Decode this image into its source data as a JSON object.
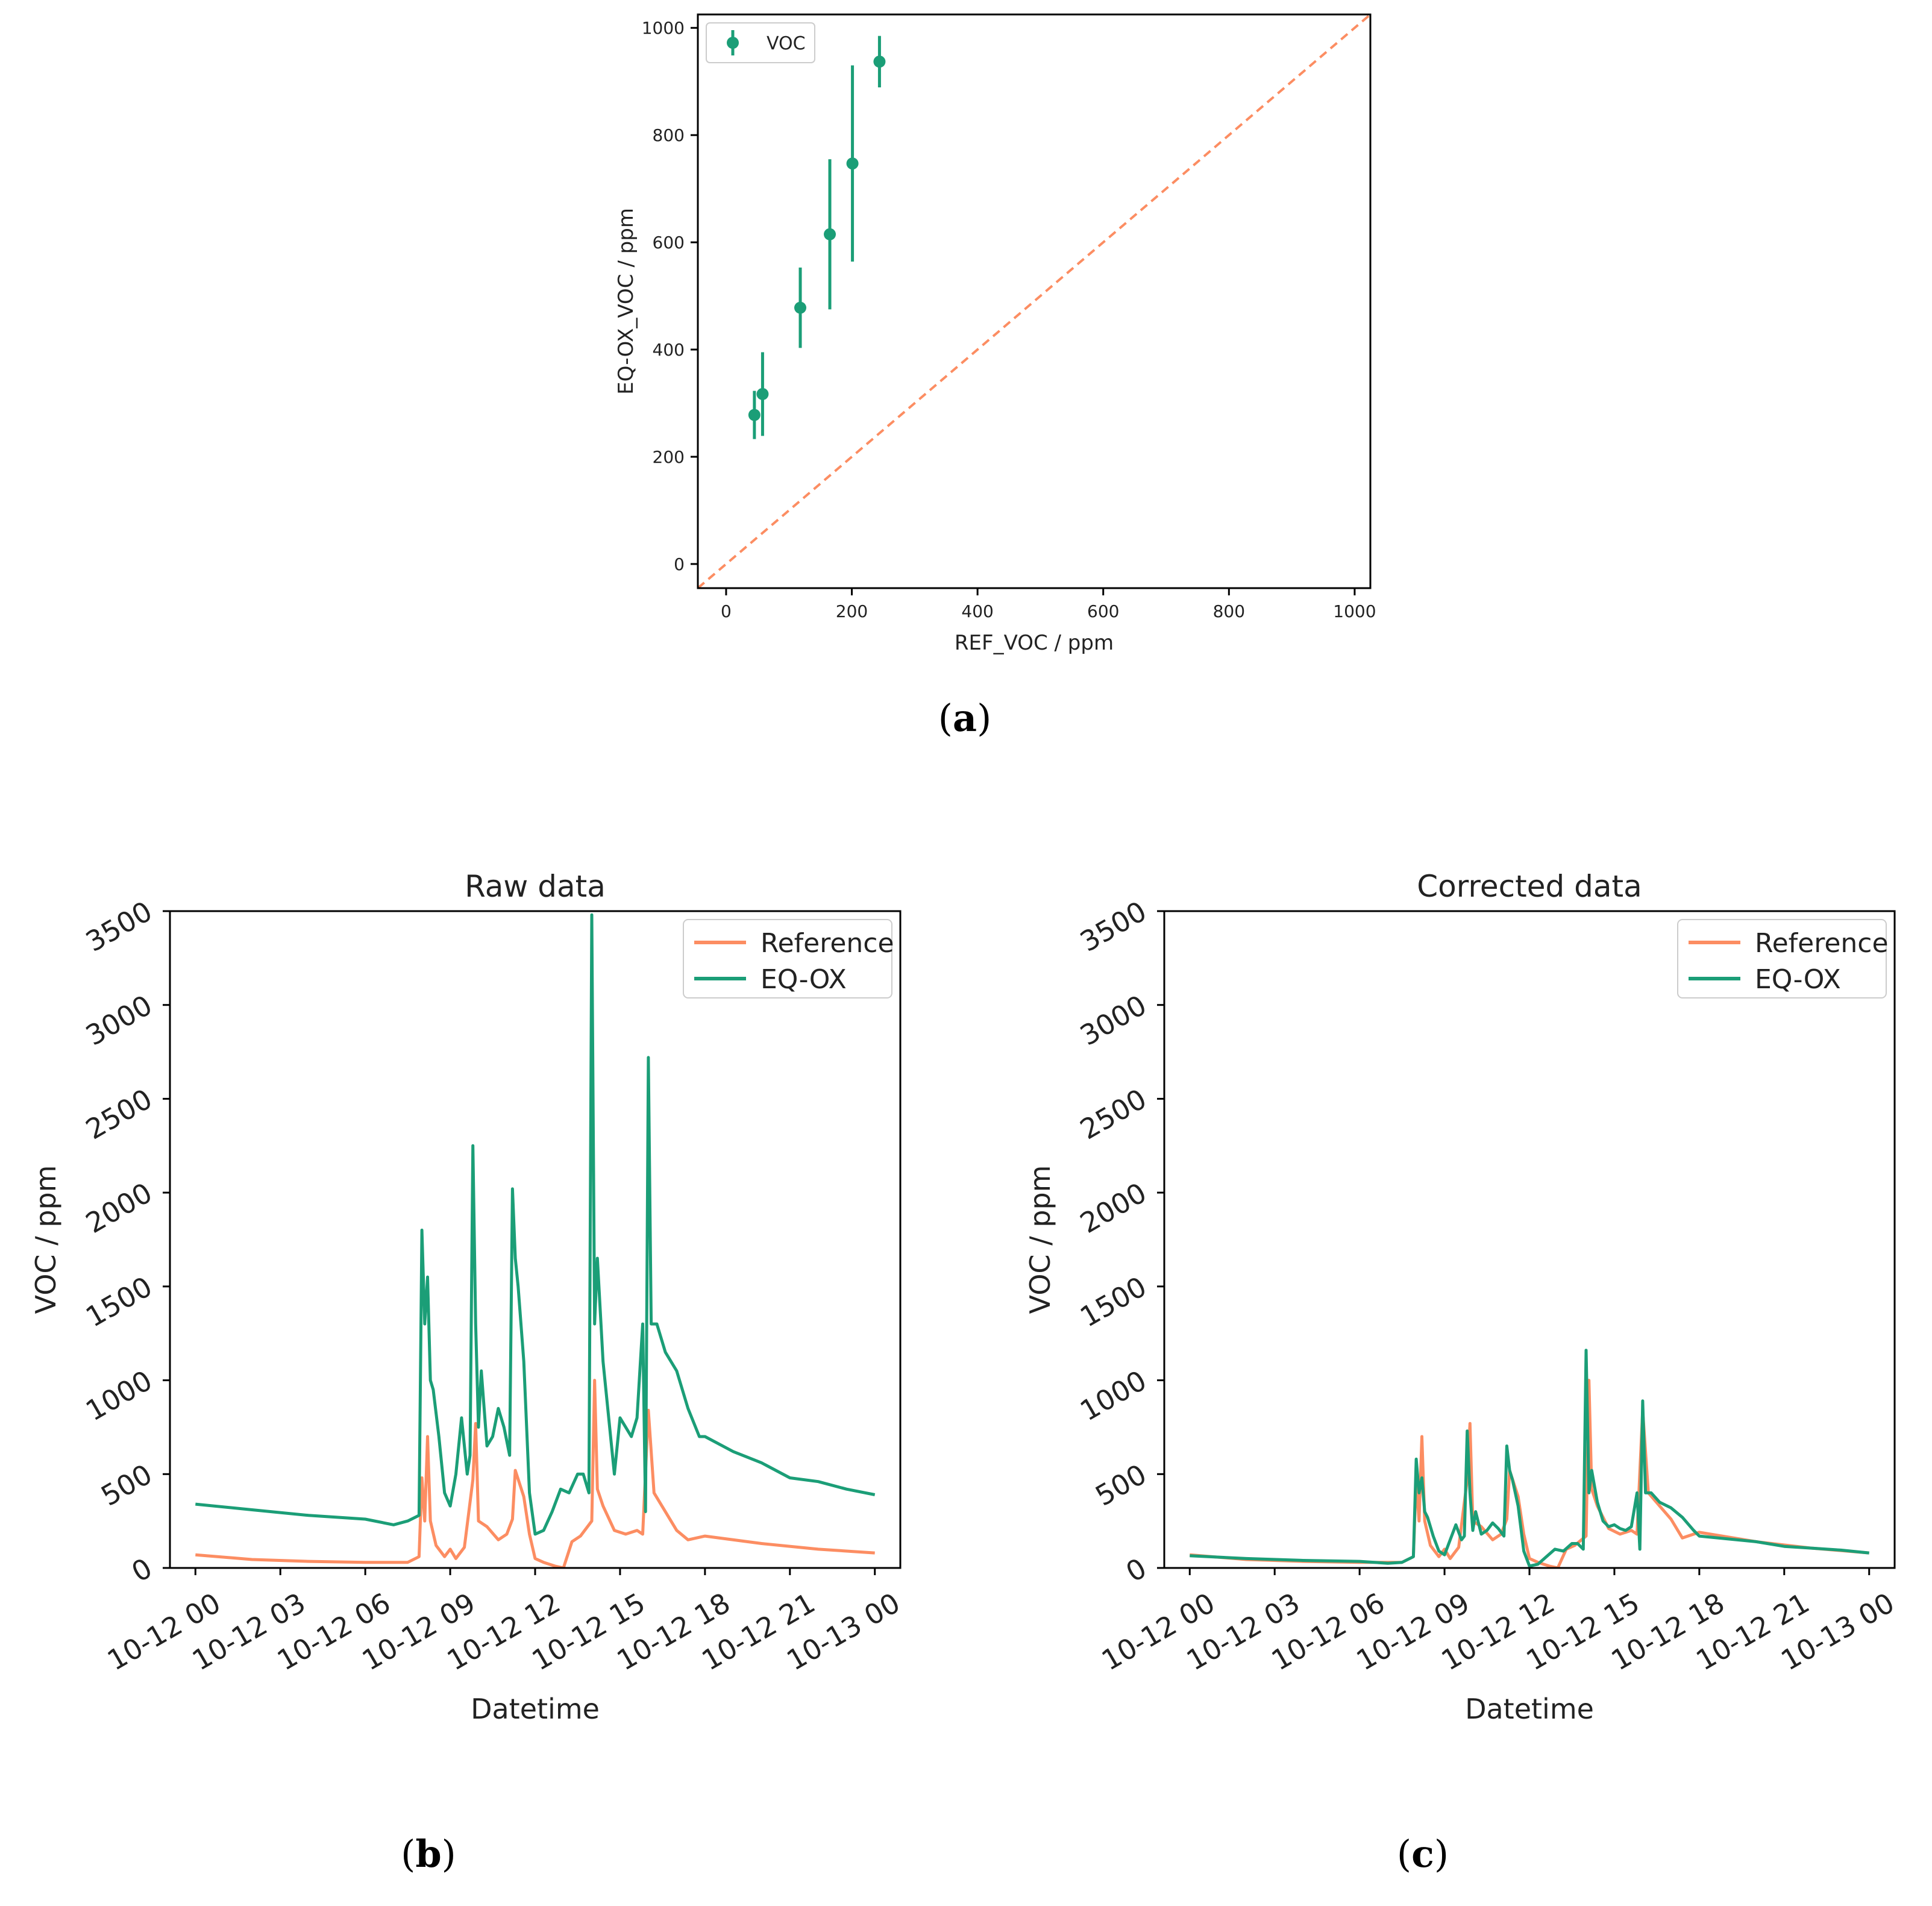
{
  "colors": {
    "voc": "#1b9e77",
    "reference": "#fc8d62",
    "eqox": "#1b9e77",
    "axis": "#000000"
  },
  "chart_data": [
    {
      "panel": "a",
      "panel_label": "a",
      "type": "scatter",
      "title": "",
      "xlabel": "REF_VOC / ppm",
      "ylabel": "EQ-OX_VOC / ppm",
      "xlim": [
        -45,
        1025
      ],
      "ylim": [
        -45,
        1025
      ],
      "xticks": [
        0,
        200,
        400,
        600,
        800,
        1000
      ],
      "yticks": [
        0,
        200,
        400,
        600,
        800,
        1000
      ],
      "legend": {
        "position": "top-left",
        "entries": [
          "VOC"
        ]
      },
      "series": [
        {
          "name": "VOC",
          "errorbars": true,
          "points": [
            {
              "x": 45,
              "y": 278,
              "yerr": 45
            },
            {
              "x": 58,
              "y": 317,
              "yerr": 78
            },
            {
              "x": 118,
              "y": 478,
              "yerr": 75
            },
            {
              "x": 165,
              "y": 615,
              "yerr": 140
            },
            {
              "x": 201,
              "y": 747,
              "yerr": 183
            },
            {
              "x": 244,
              "y": 937,
              "yerr": 48
            }
          ]
        }
      ],
      "reference_line": {
        "name": "1:1",
        "style": "dashed",
        "from": [
          -45,
          -45
        ],
        "to": [
          1025,
          1025
        ]
      }
    },
    {
      "panel": "b",
      "panel_label": "b",
      "type": "line",
      "title": "Raw data",
      "xlabel": "Datetime",
      "ylabel": "VOC / ppm",
      "xlim": [
        -0.9,
        24.9
      ],
      "ylim": [
        0,
        3500
      ],
      "xticks": [
        0,
        3,
        6,
        9,
        12,
        15,
        18,
        21,
        24
      ],
      "xtick_labels": [
        "10-12 00",
        "10-12 03",
        "10-12 06",
        "10-12 09",
        "10-12 12",
        "10-12 15",
        "10-12 18",
        "10-12 21",
        "10-13 00"
      ],
      "yticks": [
        0,
        500,
        1000,
        1500,
        2000,
        2500,
        3000,
        3500
      ],
      "legend": {
        "position": "top-right",
        "entries": [
          "Reference",
          "EQ-OX"
        ]
      },
      "series": [
        {
          "name": "Reference",
          "x": [
            0,
            2,
            4,
            6,
            7.5,
            7.9,
            8.0,
            8.1,
            8.2,
            8.3,
            8.5,
            8.8,
            9.0,
            9.2,
            9.5,
            9.8,
            9.9,
            10.0,
            10.3,
            10.7,
            11.0,
            11.2,
            11.3,
            11.6,
            11.8,
            12.0,
            12.3,
            12.7,
            13.0,
            13.3,
            13.6,
            14.0,
            14.1,
            14.2,
            14.4,
            14.8,
            15.2,
            15.6,
            15.8,
            16.0,
            16.2,
            16.6,
            17.0,
            17.4,
            18.0,
            20.0,
            22.0,
            24.0
          ],
          "y": [
            70,
            45,
            35,
            30,
            30,
            60,
            480,
            250,
            700,
            250,
            120,
            60,
            100,
            50,
            110,
            470,
            770,
            250,
            220,
            150,
            180,
            260,
            520,
            380,
            180,
            50,
            30,
            10,
            0,
            140,
            170,
            250,
            1000,
            420,
            330,
            200,
            180,
            200,
            180,
            840,
            400,
            300,
            200,
            150,
            170,
            130,
            100,
            80
          ]
        },
        {
          "name": "EQ-OX",
          "x": [
            0,
            2,
            4,
            6,
            7.0,
            7.5,
            7.9,
            8.0,
            8.1,
            8.2,
            8.3,
            8.4,
            8.6,
            8.8,
            9.0,
            9.2,
            9.4,
            9.6,
            9.7,
            9.8,
            9.9,
            10.0,
            10.1,
            10.3,
            10.5,
            10.7,
            10.9,
            11.1,
            11.2,
            11.3,
            11.4,
            11.6,
            11.8,
            12.0,
            12.3,
            12.6,
            12.9,
            13.2,
            13.5,
            13.7,
            13.9,
            14.0,
            14.1,
            14.2,
            14.4,
            14.6,
            14.8,
            15.0,
            15.2,
            15.4,
            15.6,
            15.8,
            15.9,
            16.0,
            16.1,
            16.3,
            16.6,
            17.0,
            17.4,
            17.8,
            18.0,
            19.0,
            20.0,
            21.0,
            22.0,
            23.0,
            24.0
          ],
          "y": [
            340,
            310,
            280,
            260,
            230,
            250,
            280,
            1800,
            1300,
            1550,
            1000,
            950,
            700,
            400,
            330,
            500,
            800,
            500,
            600,
            2250,
            1300,
            750,
            1050,
            650,
            700,
            850,
            750,
            600,
            2020,
            1650,
            1500,
            1100,
            400,
            180,
            200,
            300,
            420,
            400,
            500,
            500,
            400,
            3480,
            1300,
            1650,
            1100,
            800,
            500,
            800,
            750,
            700,
            800,
            1300,
            300,
            2720,
            1300,
            1300,
            1150,
            1050,
            850,
            700,
            700,
            620,
            560,
            480,
            460,
            420,
            390
          ]
        }
      ]
    },
    {
      "panel": "c",
      "panel_label": "c",
      "type": "line",
      "title": "Corrected data",
      "xlabel": "Datetime",
      "ylabel": "VOC / ppm",
      "xlim": [
        -0.9,
        24.9
      ],
      "ylim": [
        0,
        3500
      ],
      "xticks": [
        0,
        3,
        6,
        9,
        12,
        15,
        18,
        21,
        24
      ],
      "xtick_labels": [
        "10-12 00",
        "10-12 03",
        "10-12 06",
        "10-12 09",
        "10-12 12",
        "10-12 15",
        "10-12 18",
        "10-12 21",
        "10-13 00"
      ],
      "yticks": [
        0,
        500,
        1000,
        1500,
        2000,
        2500,
        3000,
        3500
      ],
      "legend": {
        "position": "top-right",
        "entries": [
          "Reference",
          "EQ-OX"
        ]
      },
      "series": [
        {
          "name": "Reference",
          "x": [
            0,
            2,
            4,
            6,
            7.5,
            7.9,
            8.0,
            8.1,
            8.2,
            8.3,
            8.5,
            8.8,
            9.0,
            9.2,
            9.5,
            9.8,
            9.9,
            10.0,
            10.3,
            10.7,
            11.0,
            11.2,
            11.3,
            11.6,
            11.8,
            12.0,
            12.3,
            12.7,
            13.0,
            13.3,
            13.6,
            14.0,
            14.1,
            14.2,
            14.4,
            14.8,
            15.2,
            15.6,
            15.8,
            16.0,
            16.2,
            16.6,
            17.0,
            17.4,
            18.0,
            20.0,
            22.0,
            24.0
          ],
          "y": [
            70,
            45,
            35,
            30,
            30,
            60,
            480,
            250,
            700,
            250,
            120,
            60,
            100,
            50,
            110,
            470,
            770,
            250,
            220,
            150,
            180,
            260,
            520,
            380,
            180,
            50,
            30,
            10,
            0,
            100,
            120,
            170,
            1000,
            420,
            330,
            210,
            180,
            200,
            180,
            840,
            400,
            330,
            260,
            160,
            190,
            140,
            105,
            80
          ]
        },
        {
          "name": "EQ-OX",
          "x": [
            0,
            2,
            4,
            6,
            7.0,
            7.5,
            7.9,
            8.0,
            8.1,
            8.2,
            8.3,
            8.4,
            8.6,
            8.8,
            9.0,
            9.2,
            9.4,
            9.6,
            9.7,
            9.8,
            9.9,
            10.0,
            10.1,
            10.3,
            10.5,
            10.7,
            10.9,
            11.1,
            11.2,
            11.3,
            11.4,
            11.6,
            11.8,
            12.0,
            12.3,
            12.6,
            12.9,
            13.2,
            13.5,
            13.7,
            13.9,
            14.0,
            14.1,
            14.2,
            14.4,
            14.6,
            14.8,
            15.0,
            15.2,
            15.4,
            15.6,
            15.8,
            15.9,
            16.0,
            16.1,
            16.3,
            16.6,
            17.0,
            17.4,
            17.8,
            18.0,
            19.0,
            20.0,
            21.0,
            22.0,
            23.0,
            24.0
          ],
          "y": [
            65,
            50,
            40,
            35,
            25,
            30,
            60,
            580,
            400,
            480,
            300,
            270,
            170,
            90,
            70,
            150,
            230,
            150,
            170,
            730,
            400,
            200,
            300,
            180,
            200,
            240,
            210,
            170,
            650,
            520,
            470,
            330,
            90,
            10,
            20,
            60,
            100,
            90,
            130,
            130,
            100,
            1160,
            400,
            520,
            350,
            250,
            220,
            230,
            210,
            200,
            220,
            400,
            100,
            890,
            400,
            400,
            350,
            320,
            270,
            200,
            170,
            155,
            140,
            115,
            105,
            95,
            80
          ]
        }
      ]
    }
  ]
}
